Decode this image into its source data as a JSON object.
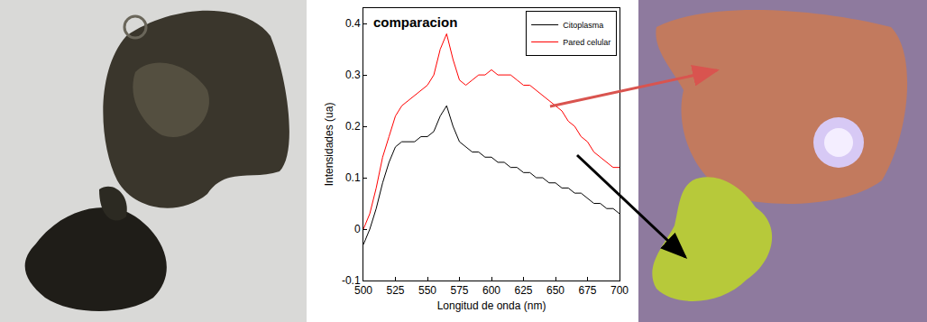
{
  "chart_data": {
    "type": "line",
    "title": "comparacion",
    "x_label": "Longitud de onda (nm)",
    "y_label": "Intensidades (ua)",
    "x": [
      500,
      505,
      510,
      515,
      520,
      525,
      530,
      535,
      540,
      545,
      550,
      555,
      560,
      565,
      570,
      575,
      580,
      585,
      590,
      595,
      600,
      605,
      610,
      615,
      620,
      625,
      630,
      635,
      640,
      645,
      650,
      655,
      660,
      665,
      670,
      675,
      680,
      685,
      690,
      695,
      700
    ],
    "series": [
      {
        "name": "Citoplasma",
        "color": "#000000",
        "values": [
          -0.03,
          0.0,
          0.04,
          0.09,
          0.13,
          0.16,
          0.17,
          0.17,
          0.17,
          0.18,
          0.18,
          0.19,
          0.22,
          0.24,
          0.2,
          0.17,
          0.16,
          0.15,
          0.15,
          0.14,
          0.14,
          0.13,
          0.13,
          0.12,
          0.12,
          0.11,
          0.11,
          0.1,
          0.1,
          0.09,
          0.09,
          0.08,
          0.08,
          0.07,
          0.07,
          0.06,
          0.05,
          0.05,
          0.04,
          0.04,
          0.03
        ]
      },
      {
        "name": "Pared celular",
        "color": "#ff0000",
        "values": [
          0.0,
          0.03,
          0.08,
          0.14,
          0.18,
          0.22,
          0.24,
          0.25,
          0.26,
          0.27,
          0.28,
          0.3,
          0.35,
          0.38,
          0.33,
          0.29,
          0.28,
          0.29,
          0.3,
          0.3,
          0.31,
          0.3,
          0.3,
          0.3,
          0.29,
          0.28,
          0.28,
          0.27,
          0.26,
          0.25,
          0.24,
          0.23,
          0.21,
          0.2,
          0.18,
          0.17,
          0.15,
          0.14,
          0.13,
          0.12,
          0.12
        ]
      }
    ],
    "xlim": [
      500,
      700
    ],
    "ylim": [
      -0.1,
      0.43
    ],
    "xticks": [
      500,
      525,
      550,
      575,
      600,
      625,
      650,
      675,
      700
    ],
    "yticks": [
      -0.1,
      0.0,
      0.1,
      0.2,
      0.3,
      0.4
    ],
    "legend": "top-right",
    "grid": false
  }
}
